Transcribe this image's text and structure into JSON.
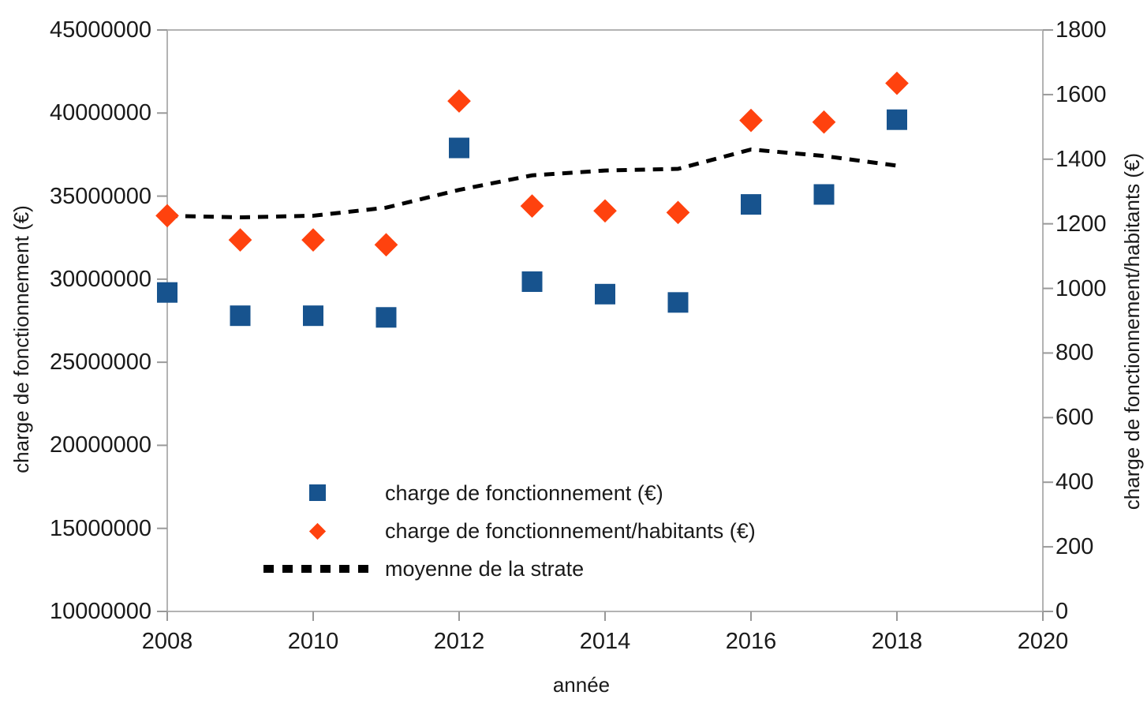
{
  "chart_data": {
    "type": "scatter",
    "title": "",
    "xlabel": "année",
    "ylabel_left": "charge de fonctionnement (€)",
    "ylabel_right": "charge de fonctionnement/habitants (€)",
    "grid": "off",
    "legend_position": "inside-bottom-left",
    "x": [
      2008,
      2009,
      2010,
      2011,
      2012,
      2013,
      2014,
      2015,
      2016,
      2017,
      2018
    ],
    "series": [
      {
        "name": "charge de fonctionnement (€)",
        "axis": "left",
        "marker": "square",
        "color": "#17538e",
        "values": [
          29200000,
          27800000,
          27800000,
          27700000,
          37900000,
          29850000,
          29100000,
          28600000,
          34500000,
          35100000,
          39600000
        ]
      },
      {
        "name": "charge de fonctionnement/habitants (€)",
        "axis": "right",
        "marker": "diamond",
        "color": "#ff420e",
        "values": [
          1225,
          1150,
          1150,
          1135,
          1580,
          1255,
          1240,
          1235,
          1520,
          1515,
          1635
        ]
      },
      {
        "name": "moyenne de la strate",
        "axis": "right",
        "marker": "dashed-line",
        "color": "#000000",
        "values": [
          1225,
          1220,
          1225,
          1250,
          1305,
          1350,
          1365,
          1370,
          1430,
          1410,
          1380
        ]
      }
    ],
    "x_axis": {
      "min": 2008,
      "max": 2020,
      "ticks": [
        2008,
        2010,
        2012,
        2014,
        2016,
        2018,
        2020
      ]
    },
    "y_axis_left": {
      "min": 10000000,
      "max": 45000000,
      "ticks": [
        45000000,
        40000000,
        35000000,
        30000000,
        25000000,
        20000000,
        15000000,
        10000000
      ]
    },
    "y_axis_right": {
      "min": 0,
      "max": 1800,
      "ticks": [
        1800,
        1600,
        1400,
        1200,
        1000,
        800,
        600,
        400,
        200,
        0
      ]
    },
    "colors": {
      "axis_line": "#b3b3b3",
      "tick": "#999999",
      "text": "#1a1a1a"
    }
  }
}
